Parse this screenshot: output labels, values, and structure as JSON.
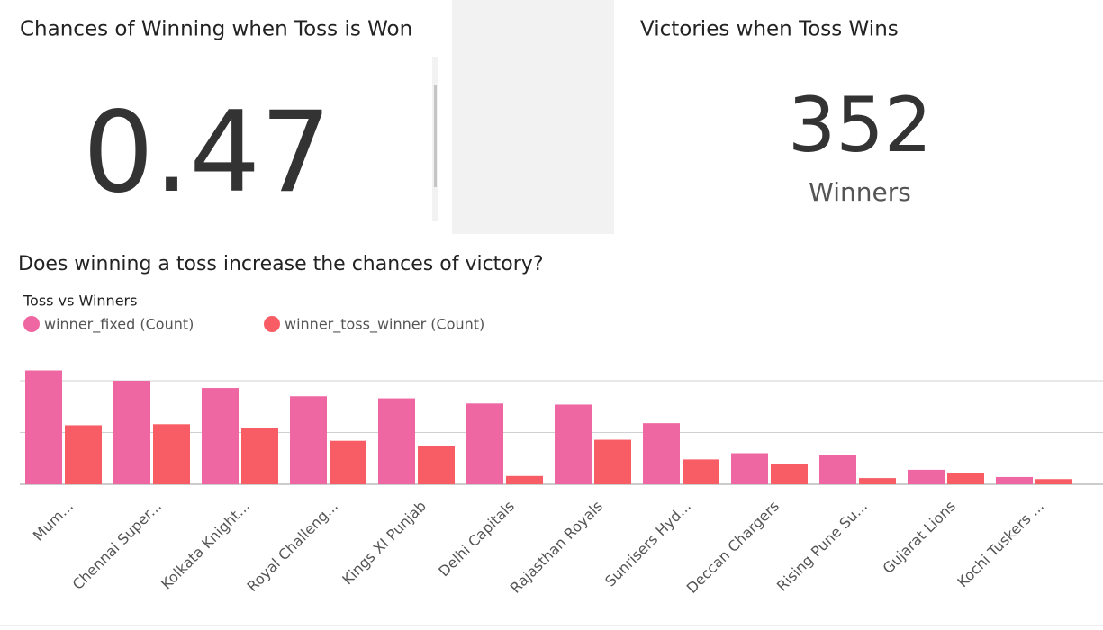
{
  "kpi_left": {
    "title": "Chances of Winning when Toss is Won",
    "value": 0.47
  },
  "kpi_right": {
    "title": "Victories when Toss Wins",
    "value": 352,
    "unit": "Winners"
  },
  "chart_data": {
    "type": "bar",
    "title": "Does winning a toss increase the chances of victory?",
    "subtitle": "Toss vs Winners",
    "categories": [
      "Mum...",
      "Chennai Super...",
      "Kolkata Knight...",
      "Royal Challeng...",
      "Kings XI Punjab",
      "Delhi Capitals",
      "Rajasthan Royals",
      "Sunrisers Hyd...",
      "Deccan Chargers",
      "Rising Pune Su...",
      "Gujarat Lions",
      "Kochi Tuskers ..."
    ],
    "series": [
      {
        "name": "winner_fixed (Count)",
        "color": "#ef67a2",
        "values": [
          110,
          100,
          93,
          85,
          83,
          78,
          77,
          59,
          30,
          28,
          14,
          7
        ]
      },
      {
        "name": "winner_toss_winner (Count)",
        "color": "#f85c64",
        "values": [
          57,
          58,
          54,
          42,
          37,
          8,
          43,
          24,
          20,
          6,
          11,
          5
        ]
      }
    ],
    "ylim": [
      0,
      110
    ],
    "yticks": [
      50,
      100
    ],
    "grid": true
  }
}
